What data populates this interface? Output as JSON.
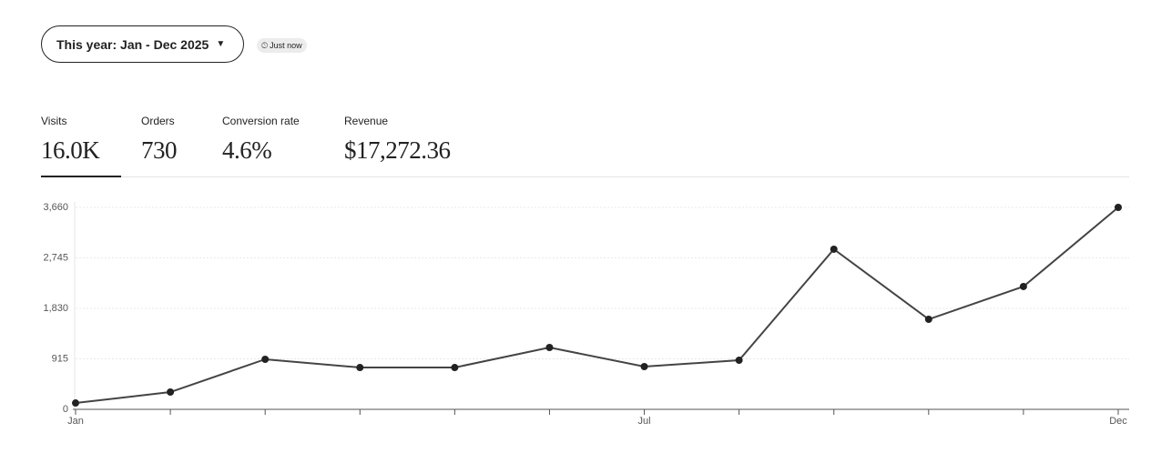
{
  "filter": {
    "label": "This year: Jan - Dec 2025"
  },
  "updated": "Just now",
  "metrics": [
    {
      "label": "Visits",
      "value": "16.0K"
    },
    {
      "label": "Orders",
      "value": "730"
    },
    {
      "label": "Conversion rate",
      "value": "4.6%"
    },
    {
      "label": "Revenue",
      "value": "$17,272.36"
    }
  ],
  "chart_data": {
    "type": "line",
    "categories": [
      "Jan",
      null,
      null,
      null,
      null,
      null,
      "Jul",
      null,
      null,
      null,
      null,
      "Dec"
    ],
    "series": [
      {
        "color": "#444444",
        "values": [
          115,
          313,
          907,
          758,
          758,
          1121,
          775,
          890,
          2902,
          1632,
          2226,
          3660
        ]
      }
    ],
    "ylim": [
      0,
      3660
    ],
    "yticks": [
      0,
      915,
      {
        "value": 1830,
        "label": "1,830"
      },
      {
        "value": 2745,
        "label": "2,745"
      },
      {
        "value": 3660,
        "label": "3,660"
      }
    ],
    "grid": true
  }
}
